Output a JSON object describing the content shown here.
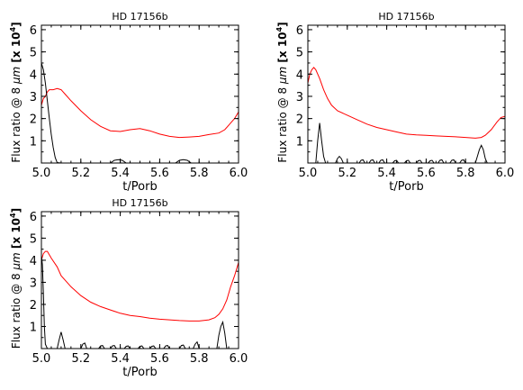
{
  "chart_data": [
    {
      "type": "line",
      "title": "HD 17156b",
      "xlabel": "t/Porb",
      "ylabel": "Flux ratio @ 8 μm [x 10⁴]",
      "ylabel_parts": [
        "Flux ratio @ 8 ",
        "μm",
        " [x 10",
        "4",
        "]"
      ],
      "xlim": [
        5.0,
        6.0
      ],
      "ylim": [
        0,
        6.2
      ],
      "x_ticks": [
        "5.0",
        "5.2",
        "5.4",
        "5.6",
        "5.8",
        "6.0"
      ],
      "x_tick_values": [
        5.0,
        5.2,
        5.4,
        5.6,
        5.8,
        6.0
      ],
      "y_ticks": [
        "1",
        "2",
        "3",
        "4",
        "5",
        "6"
      ],
      "y_tick_values": [
        1,
        2,
        3,
        4,
        5,
        6
      ],
      "series": [
        {
          "color": "#ff0000",
          "x": [
            5.0,
            5.01,
            5.02,
            5.03,
            5.04,
            5.06,
            5.08,
            5.1,
            5.12,
            5.15,
            5.2,
            5.25,
            5.3,
            5.35,
            5.4,
            5.45,
            5.5,
            5.55,
            5.6,
            5.65,
            5.7,
            5.75,
            5.8,
            5.85,
            5.9,
            5.93,
            5.96,
            5.98,
            6.0
          ],
          "y": [
            2.6,
            2.9,
            3.0,
            3.2,
            3.3,
            3.3,
            3.35,
            3.3,
            3.1,
            2.8,
            2.35,
            1.95,
            1.65,
            1.45,
            1.42,
            1.5,
            1.55,
            1.45,
            1.3,
            1.2,
            1.15,
            1.17,
            1.2,
            1.28,
            1.35,
            1.5,
            1.8,
            2.0,
            2.3
          ]
        },
        {
          "color": "#000000",
          "x": [
            5.0,
            5.01,
            5.02,
            5.03,
            5.04,
            5.05,
            5.06,
            5.07,
            5.08,
            5.1,
            5.2,
            5.35,
            5.37,
            5.39,
            5.41,
            5.43,
            5.6,
            5.68,
            5.7,
            5.72,
            5.74,
            5.76,
            5.9,
            6.0
          ],
          "y": [
            4.5,
            4.2,
            3.6,
            2.8,
            2.0,
            1.3,
            0.7,
            0.25,
            0.02,
            0.0,
            0.0,
            0.0,
            0.12,
            0.15,
            0.12,
            0.0,
            0.0,
            0.0,
            0.12,
            0.15,
            0.12,
            0.0,
            0.0,
            0.0
          ]
        }
      ]
    },
    {
      "type": "line",
      "title": "HD 17156b",
      "xlabel": "t/Porb",
      "ylabel": "Flux ratio @ 8 μm [x 10⁴]",
      "ylabel_parts": [
        "Flux ratio @ 8 ",
        "μm",
        " [x 10",
        "4",
        "]"
      ],
      "xlim": [
        5.0,
        6.0
      ],
      "ylim": [
        0,
        6.2
      ],
      "x_ticks": [
        "5.0",
        "5.2",
        "5.4",
        "5.6",
        "5.8",
        "6.0"
      ],
      "x_tick_values": [
        5.0,
        5.2,
        5.4,
        5.6,
        5.8,
        6.0
      ],
      "y_ticks": [
        "1",
        "2",
        "3",
        "4",
        "5",
        "6"
      ],
      "y_tick_values": [
        1,
        2,
        3,
        4,
        5,
        6
      ],
      "series": [
        {
          "color": "#ff0000",
          "x": [
            5.0,
            5.01,
            5.02,
            5.03,
            5.04,
            5.06,
            5.08,
            5.1,
            5.12,
            5.15,
            5.2,
            5.25,
            5.3,
            5.35,
            5.4,
            5.45,
            5.5,
            5.55,
            5.6,
            5.65,
            5.7,
            5.75,
            5.8,
            5.85,
            5.88,
            5.9,
            5.93,
            5.96,
            5.98,
            6.0
          ],
          "y": [
            3.6,
            4.0,
            4.2,
            4.3,
            4.2,
            3.8,
            3.3,
            2.9,
            2.6,
            2.35,
            2.15,
            1.95,
            1.75,
            1.6,
            1.5,
            1.4,
            1.3,
            1.27,
            1.25,
            1.22,
            1.2,
            1.18,
            1.15,
            1.12,
            1.15,
            1.25,
            1.5,
            1.85,
            2.05,
            2.1
          ]
        },
        {
          "color": "#000000",
          "x": [
            5.0,
            5.04,
            5.05,
            5.06,
            5.07,
            5.08,
            5.09,
            5.14,
            5.15,
            5.16,
            5.17,
            5.18,
            5.26,
            5.27,
            5.28,
            5.29,
            5.31,
            5.32,
            5.33,
            5.34,
            5.36,
            5.37,
            5.38,
            5.39,
            5.43,
            5.44,
            5.45,
            5.46,
            5.49,
            5.5,
            5.51,
            5.52,
            5.55,
            5.56,
            5.57,
            5.58,
            5.61,
            5.62,
            5.63,
            5.64,
            5.66,
            5.67,
            5.68,
            5.69,
            5.72,
            5.73,
            5.74,
            5.75,
            5.77,
            5.78,
            5.79,
            5.8,
            5.85,
            5.86,
            5.87,
            5.88,
            5.89,
            5.9,
            5.91,
            5.95,
            6.0
          ],
          "y": [
            0.0,
            0.0,
            1.0,
            1.8,
            1.0,
            0.3,
            0.0,
            0.0,
            0.2,
            0.3,
            0.2,
            0.0,
            0.0,
            0.12,
            0.14,
            0.0,
            0.0,
            0.12,
            0.14,
            0.0,
            0.0,
            0.12,
            0.14,
            0.0,
            0.0,
            0.1,
            0.12,
            0.0,
            0.0,
            0.1,
            0.12,
            0.0,
            0.0,
            0.1,
            0.12,
            0.0,
            0.0,
            0.1,
            0.12,
            0.0,
            0.0,
            0.12,
            0.14,
            0.0,
            0.0,
            0.12,
            0.14,
            0.0,
            0.0,
            0.12,
            0.14,
            0.0,
            0.0,
            0.3,
            0.6,
            0.8,
            0.6,
            0.2,
            0.0,
            0.0,
            0.0
          ]
        }
      ]
    },
    {
      "type": "line",
      "title": "HD 17156b",
      "xlabel": "t/Porb",
      "ylabel": "Flux ratio @ 8 μm [x 10⁴]",
      "ylabel_parts": [
        "Flux ratio @ 8 ",
        "μm",
        " [x 10",
        "4",
        "]"
      ],
      "xlim": [
        5.0,
        6.0
      ],
      "ylim": [
        0,
        6.2
      ],
      "x_ticks": [
        "5.0",
        "5.2",
        "5.4",
        "5.6",
        "5.8",
        "6.0"
      ],
      "x_tick_values": [
        5.0,
        5.2,
        5.4,
        5.6,
        5.8,
        6.0
      ],
      "y_ticks": [
        "1",
        "2",
        "3",
        "4",
        "5",
        "6"
      ],
      "y_tick_values": [
        1,
        2,
        3,
        4,
        5,
        6
      ],
      "series": [
        {
          "color": "#ff0000",
          "x": [
            5.0,
            5.01,
            5.02,
            5.03,
            5.05,
            5.08,
            5.1,
            5.15,
            5.2,
            5.25,
            5.3,
            5.35,
            5.4,
            5.45,
            5.5,
            5.55,
            5.6,
            5.65,
            5.7,
            5.75,
            5.8,
            5.85,
            5.88,
            5.9,
            5.92,
            5.94,
            5.96,
            5.98,
            6.0
          ],
          "y": [
            4.0,
            4.3,
            4.4,
            4.4,
            4.1,
            3.7,
            3.3,
            2.8,
            2.4,
            2.1,
            1.9,
            1.75,
            1.6,
            1.5,
            1.45,
            1.38,
            1.33,
            1.3,
            1.27,
            1.25,
            1.25,
            1.3,
            1.4,
            1.55,
            1.8,
            2.2,
            2.8,
            3.3,
            3.9
          ]
        },
        {
          "color": "#000000",
          "x": [
            5.0,
            5.005,
            5.01,
            5.015,
            5.02,
            5.03,
            5.04,
            5.08,
            5.09,
            5.1,
            5.11,
            5.12,
            5.2,
            5.21,
            5.22,
            5.23,
            5.29,
            5.3,
            5.31,
            5.32,
            5.35,
            5.36,
            5.37,
            5.38,
            5.42,
            5.43,
            5.44,
            5.45,
            5.49,
            5.5,
            5.51,
            5.52,
            5.55,
            5.56,
            5.57,
            5.58,
            5.62,
            5.63,
            5.64,
            5.65,
            5.7,
            5.71,
            5.72,
            5.73,
            5.77,
            5.78,
            5.79,
            5.8,
            5.89,
            5.9,
            5.91,
            5.92,
            5.93,
            5.94,
            5.98,
            6.0
          ],
          "y": [
            4.2,
            3.8,
            2.5,
            1.0,
            0.2,
            0.0,
            0.0,
            0.0,
            0.4,
            0.75,
            0.4,
            0.0,
            0.0,
            0.2,
            0.25,
            0.0,
            0.0,
            0.12,
            0.14,
            0.0,
            0.0,
            0.12,
            0.14,
            0.0,
            0.0,
            0.1,
            0.12,
            0.0,
            0.0,
            0.1,
            0.12,
            0.0,
            0.0,
            0.1,
            0.12,
            0.0,
            0.0,
            0.12,
            0.14,
            0.0,
            0.0,
            0.14,
            0.16,
            0.0,
            0.0,
            0.2,
            0.3,
            0.0,
            0.0,
            0.6,
            1.0,
            1.2,
            0.7,
            0.0,
            0.0,
            0.0
          ]
        }
      ]
    }
  ]
}
